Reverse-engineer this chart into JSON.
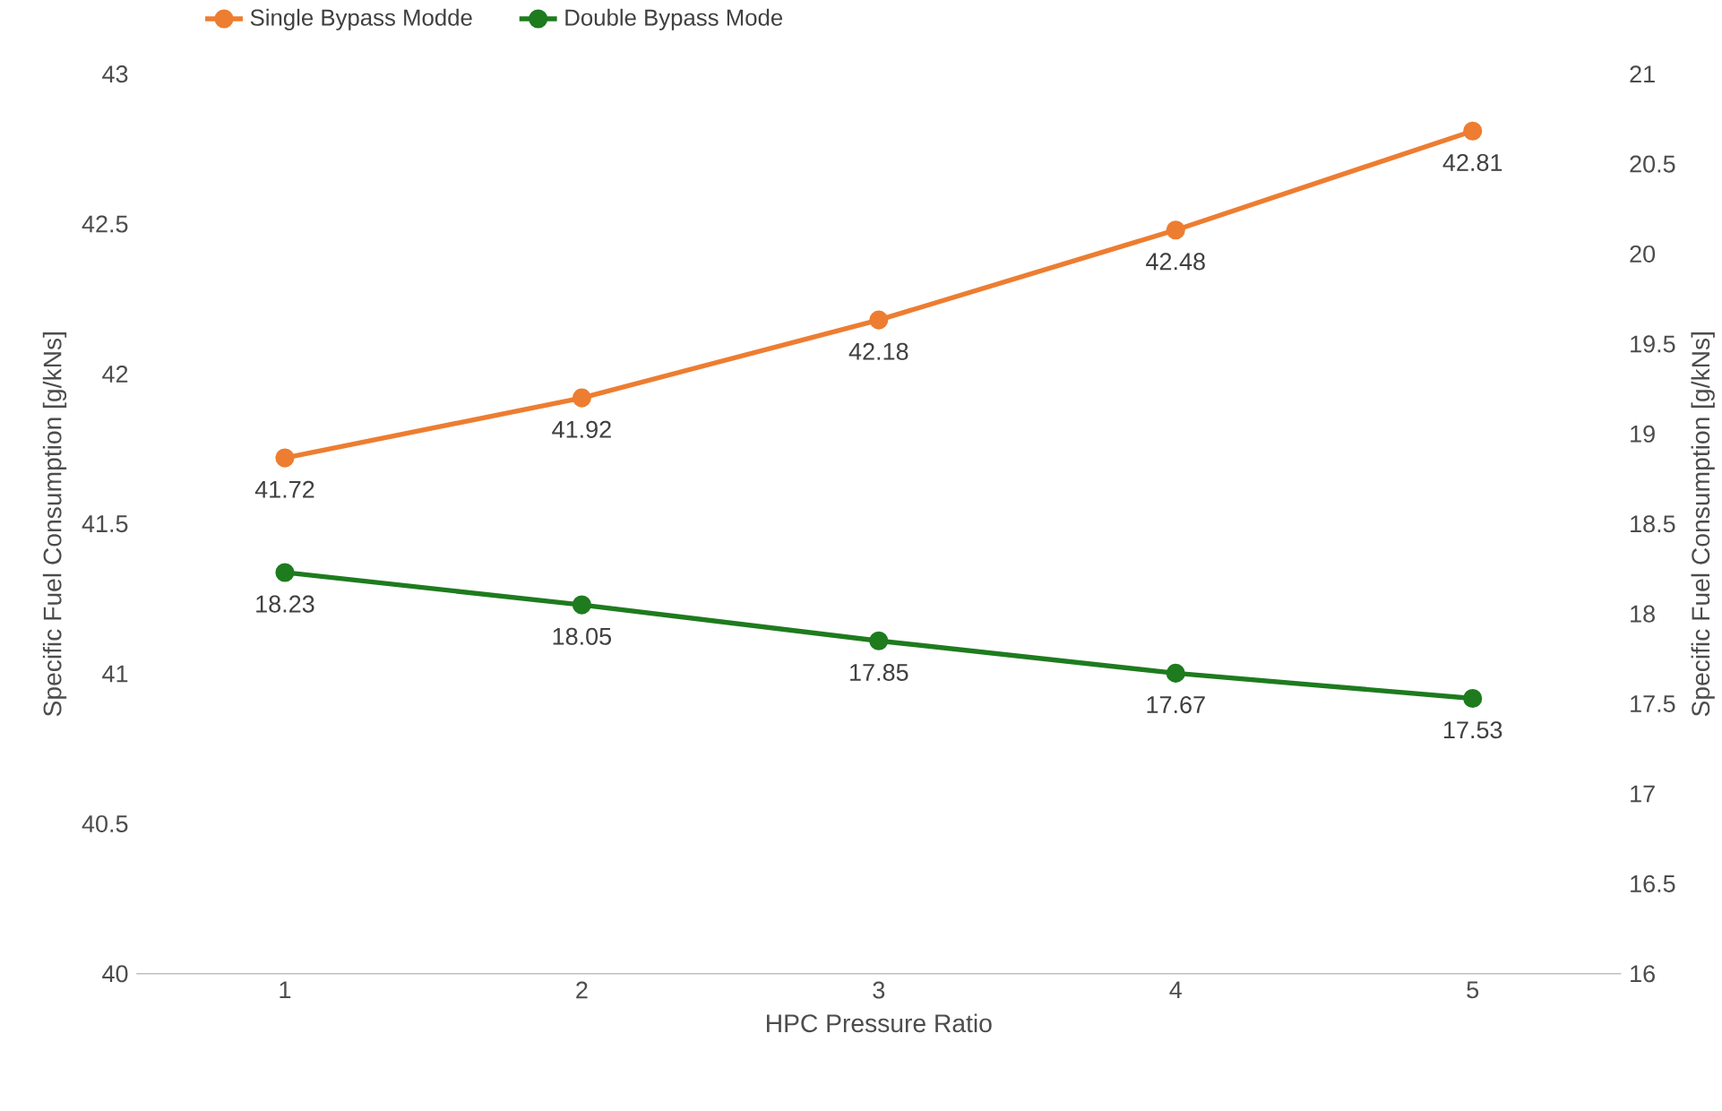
{
  "chart_data": {
    "type": "line",
    "xlabel": "HPC Pressure Ratio",
    "ylabel": "Specific Fuel Consumption [g/kNs]",
    "y2label": "Specific Fuel Consumption [g/kNs]",
    "categories": [
      "1",
      "2",
      "3",
      "4",
      "5"
    ],
    "series": [
      {
        "name": "Single Bypass Modde",
        "color": "#ed7d31",
        "values": [
          41.72,
          41.92,
          42.18,
          42.48,
          42.81
        ]
      },
      {
        "name": "Double Bypass Mode",
        "color": "#1e7b1e",
        "axis": "y2",
        "values": [
          18.23,
          18.05,
          17.85,
          17.67,
          17.53
        ]
      }
    ],
    "ylim": [
      40,
      43
    ],
    "yticks": [
      40,
      40.5,
      41,
      41.5,
      42,
      42.5,
      43
    ],
    "y2lim": [
      16,
      21
    ],
    "y2ticks": [
      16,
      16.5,
      17,
      17.5,
      18,
      18.5,
      19,
      19.5,
      20,
      20.5,
      21
    ],
    "data_labels": true,
    "legend": "top",
    "marker": "circle",
    "line_style": "solid",
    "grid": false
  }
}
